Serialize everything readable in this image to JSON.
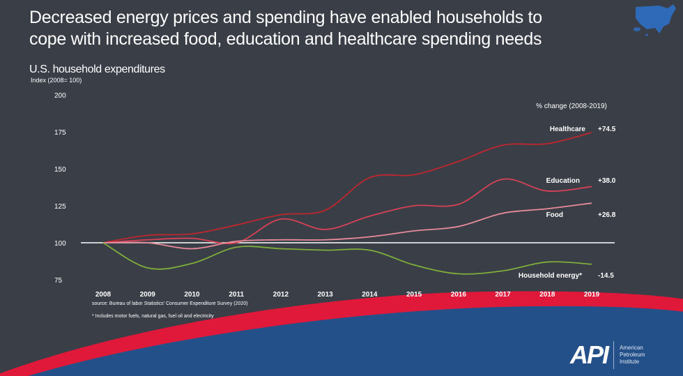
{
  "header": {
    "title_line1": "Decreased energy prices and spending have enabled households to",
    "title_line2": "cope with increased food, education and healthcare spending needs",
    "map_icon": "us-map-icon"
  },
  "footer": {
    "source": "source: Bureau of labor Statistics' Consumer Expenditure Survey (2020)",
    "note": "* Includes motor fuels, natural gas, fuel oil and electricity",
    "logo_mark": "API",
    "logo_text": [
      "American",
      "Petroleum",
      "Institute"
    ]
  },
  "colors": {
    "background": "#3a3e47",
    "healthcare": "#c0262d",
    "education": "#d94155",
    "food": "#e78a9a",
    "energy": "#7fae3a",
    "baseline": "#ffffff",
    "band_red": "#e0193b",
    "band_blue": "#24508a"
  },
  "chart_data": {
    "type": "line",
    "title": "U.S. household expenditures",
    "ylabel": "Index (2008= 100)",
    "xlabel": "",
    "x": [
      "2008",
      "2009",
      "2010",
      "2011",
      "2012",
      "2013",
      "2014",
      "2015",
      "2016",
      "2017",
      "2018",
      "2019"
    ],
    "ylim": [
      75,
      200
    ],
    "yticks": [
      200,
      175,
      150,
      125,
      100,
      75
    ],
    "baseline": 100,
    "grid": false,
    "legend_header": "% change (2008-2019)",
    "legend_placement": "right",
    "series": [
      {
        "key": "healthcare",
        "name": "Healthcare",
        "change": "+74.5",
        "values": [
          100,
          105,
          106,
          112,
          119,
          122,
          144,
          146,
          155,
          166,
          167,
          174.5
        ]
      },
      {
        "key": "education",
        "name": "Education",
        "change": "+38.0",
        "values": [
          100,
          102,
          103,
          100,
          116,
          109,
          118,
          125,
          126,
          143,
          135,
          138
        ]
      },
      {
        "key": "food",
        "name": "Food",
        "change": "+26.8",
        "values": [
          100,
          100,
          96,
          101,
          102,
          102,
          104,
          108,
          111,
          120,
          123,
          126.8
        ]
      },
      {
        "key": "energy",
        "name": "Household energy*",
        "change": "-14.5",
        "values": [
          100,
          83,
          86,
          97,
          96,
          95,
          95,
          85,
          79,
          81,
          87,
          85.5
        ]
      }
    ]
  }
}
